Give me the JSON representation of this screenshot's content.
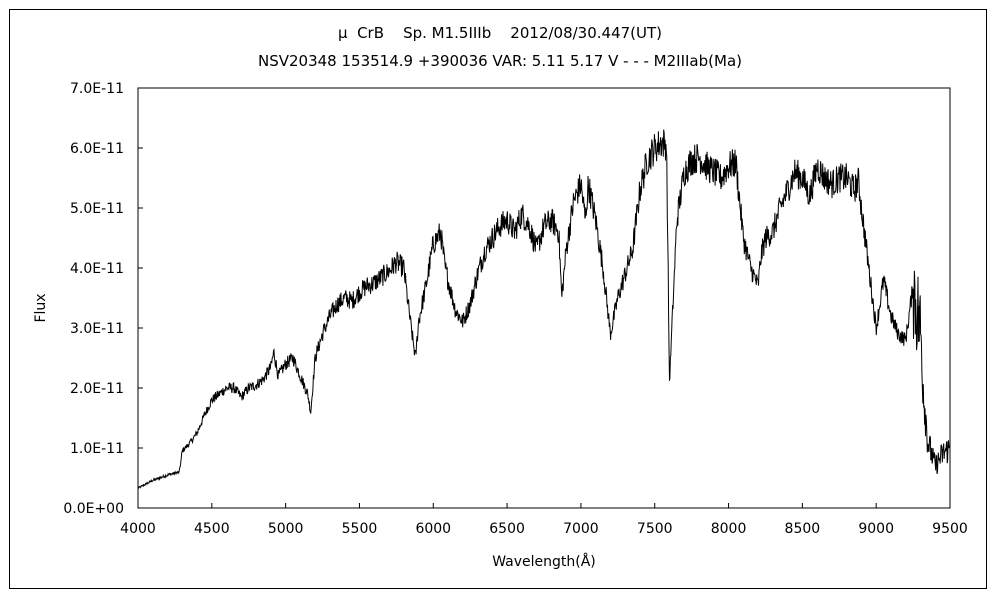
{
  "chart_data": {
    "type": "line",
    "title": "μ  CrB    Sp. M1.5IIIb    2012/08/30.447(UT)",
    "subtitle": "NSV20348 153514.9 +390036 VAR: 5.11 5.17 V - - - M2IIIab(Ma)",
    "xlabel": "Wavelength(Å)",
    "ylabel": "Flux",
    "xlim": [
      4000,
      9500
    ],
    "ylim": [
      0,
      7e-11
    ],
    "xticks": [
      4000,
      4500,
      5000,
      5500,
      6000,
      6500,
      7000,
      7500,
      8000,
      8500,
      9000,
      9500
    ],
    "yticks": [
      0,
      1e-11,
      2e-11,
      3e-11,
      4e-11,
      5e-11,
      6e-11,
      7e-11
    ],
    "ytick_labels": [
      "0.0E+00",
      "1.0E-11",
      "2.0E-11",
      "3.0E-11",
      "4.0E-11",
      "5.0E-11",
      "6.0E-11",
      "7.0E-11"
    ],
    "grid": false,
    "legend": "none",
    "line_color": "#000000",
    "series": [
      {
        "x": [
          4000,
          4100,
          4200,
          4280,
          4300,
          4350,
          4400,
          4450,
          4500,
          4550,
          4600,
          4650,
          4700,
          4750,
          4800,
          4850,
          4900,
          4920,
          4950,
          5000,
          5050,
          5100,
          5150,
          5170,
          5200,
          5250,
          5300,
          5350,
          5400,
          5450,
          5500,
          5550,
          5600,
          5650,
          5700,
          5750,
          5800,
          5850,
          5880,
          5900,
          5950,
          6000,
          6050,
          6080,
          6100,
          6150,
          6200,
          6250,
          6300,
          6350,
          6400,
          6450,
          6500,
          6550,
          6600,
          6650,
          6700,
          6750,
          6800,
          6850,
          6870,
          6900,
          6950,
          7000,
          7030,
          7050,
          7100,
          7150,
          7200,
          7250,
          7300,
          7350,
          7400,
          7450,
          7500,
          7550,
          7580,
          7600,
          7620,
          7650,
          7700,
          7750,
          7800,
          7850,
          7900,
          7950,
          8000,
          8050,
          8100,
          8150,
          8200,
          8220,
          8250,
          8300,
          8350,
          8400,
          8450,
          8500,
          8550,
          8600,
          8650,
          8700,
          8750,
          8800,
          8850,
          8880,
          8900,
          8950,
          9000,
          9050,
          9100,
          9150,
          9200,
          9250,
          9270,
          9300,
          9320,
          9350,
          9400,
          9450,
          9500
        ],
        "y": [
          3.3e-12,
          4.6e-12,
          5.5e-12,
          6e-12,
          9.5e-12,
          1.08e-11,
          1.25e-11,
          1.55e-11,
          1.8e-11,
          1.9e-11,
          2e-11,
          2e-11,
          1.85e-11,
          2e-11,
          2.05e-11,
          2.15e-11,
          2.35e-11,
          2.6e-11,
          2.2e-11,
          2.4e-11,
          2.5e-11,
          2.2e-11,
          1.9e-11,
          1.6e-11,
          2.5e-11,
          2.9e-11,
          3.2e-11,
          3.4e-11,
          3.5e-11,
          3.45e-11,
          3.6e-11,
          3.7e-11,
          3.75e-11,
          3.85e-11,
          3.95e-11,
          4.1e-11,
          4e-11,
          3e-11,
          2.5e-11,
          3.1e-11,
          3.7e-11,
          4.4e-11,
          4.6e-11,
          4e-11,
          3.8e-11,
          3.3e-11,
          3.1e-11,
          3.4e-11,
          3.9e-11,
          4.3e-11,
          4.5e-11,
          4.7e-11,
          4.8e-11,
          4.6e-11,
          4.9e-11,
          4.7e-11,
          4.3e-11,
          4.7e-11,
          4.8e-11,
          4.6e-11,
          3.5e-11,
          4.3e-11,
          5.1e-11,
          5.4e-11,
          4.8e-11,
          5.4e-11,
          4.8e-11,
          4e-11,
          2.9e-11,
          3.5e-11,
          3.9e-11,
          4.3e-11,
          5.3e-11,
          5.8e-11,
          6e-11,
          6.1e-11,
          6.05e-11,
          2.1e-11,
          3.2e-11,
          4.8e-11,
          5.6e-11,
          5.8e-11,
          5.85e-11,
          5.7e-11,
          5.6e-11,
          5.5e-11,
          5.7e-11,
          5.75e-11,
          4.5e-11,
          4e-11,
          3.7e-11,
          4.2e-11,
          4.5e-11,
          4.6e-11,
          5e-11,
          5.3e-11,
          5.6e-11,
          5.5e-11,
          5.2e-11,
          5.7e-11,
          5.5e-11,
          5.4e-11,
          5.5e-11,
          5.5e-11,
          5.3e-11,
          5.45e-11,
          5e-11,
          4e-11,
          3e-11,
          3.8e-11,
          3.2e-11,
          2.9e-11,
          2.8e-11,
          3.7e-11,
          3.4e-11,
          3e-11,
          2e-11,
          1.1e-11,
          7e-12,
          9e-12,
          1e-11
        ]
      }
    ]
  }
}
